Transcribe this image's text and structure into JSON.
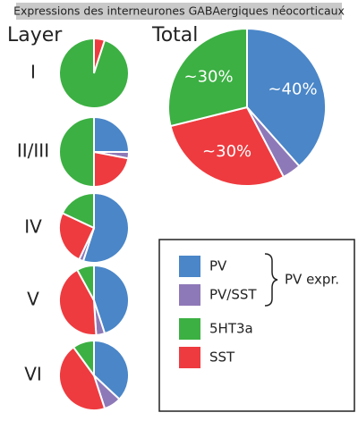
{
  "chart_data": {
    "type": "pie",
    "title": "Expressions des interneurones GABAergiques néocorticaux",
    "category_label": "Layer",
    "categories": [
      "I",
      "II/III",
      "IV",
      "V",
      "VI"
    ],
    "series": [
      {
        "name": "PV",
        "color": "#4a86c8",
        "values": [
          0,
          25,
          55,
          45,
          37
        ]
      },
      {
        "name": "PV/SST",
        "color": "#8e79b8",
        "values": [
          0,
          3,
          2,
          4,
          8
        ]
      },
      {
        "name": "5HT3a",
        "color": "#3cb043",
        "values": [
          95,
          50,
          18,
          8,
          10
        ]
      },
      {
        "name": "SST",
        "color": "#ee3b3f",
        "values": [
          5,
          22,
          25,
          43,
          45
        ]
      }
    ],
    "group_label": "PV expr.",
    "total": {
      "title": "Total",
      "values": [
        40,
        4,
        30,
        30
      ],
      "value_labels": [
        "~40%",
        null,
        "~30%",
        "~30%"
      ]
    }
  }
}
